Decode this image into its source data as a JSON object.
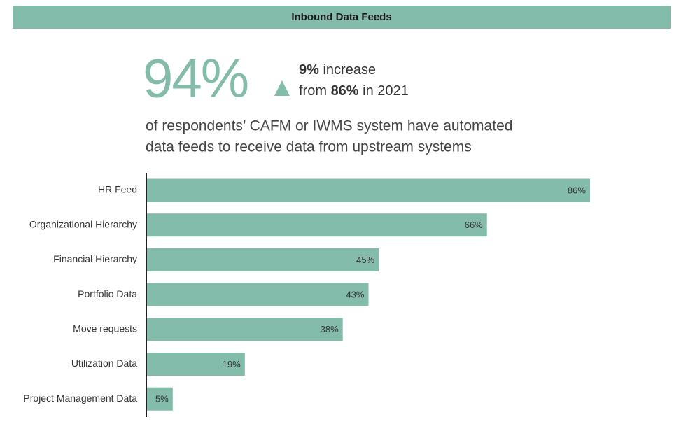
{
  "header": {
    "title": "Inbound Data Feeds"
  },
  "stat": {
    "value": "94%",
    "change": "9%",
    "change_text": " increase",
    "comparison_prefix": "from ",
    "comparison": "86%",
    "comparison_suffix": " in 2021",
    "description": [
      "of respondents’ CAFM or IWMS system have automated",
      "data feeds to receive data from upstream systems"
    ]
  },
  "chart_data": {
    "type": "bar",
    "orientation": "horizontal",
    "categories": [
      "HR Feed",
      "Organizational Hierarchy",
      "Financial Hierarchy",
      "Portfolio Data",
      "Move requests",
      "Utilization Data",
      "Project Management Data"
    ],
    "values": [
      86,
      66,
      45,
      43,
      38,
      19,
      5
    ],
    "value_labels": [
      "86%",
      "66%",
      "45%",
      "43%",
      "38%",
      "19%",
      "5%"
    ],
    "color": "#84bcab",
    "xlim": [
      0,
      100
    ]
  }
}
